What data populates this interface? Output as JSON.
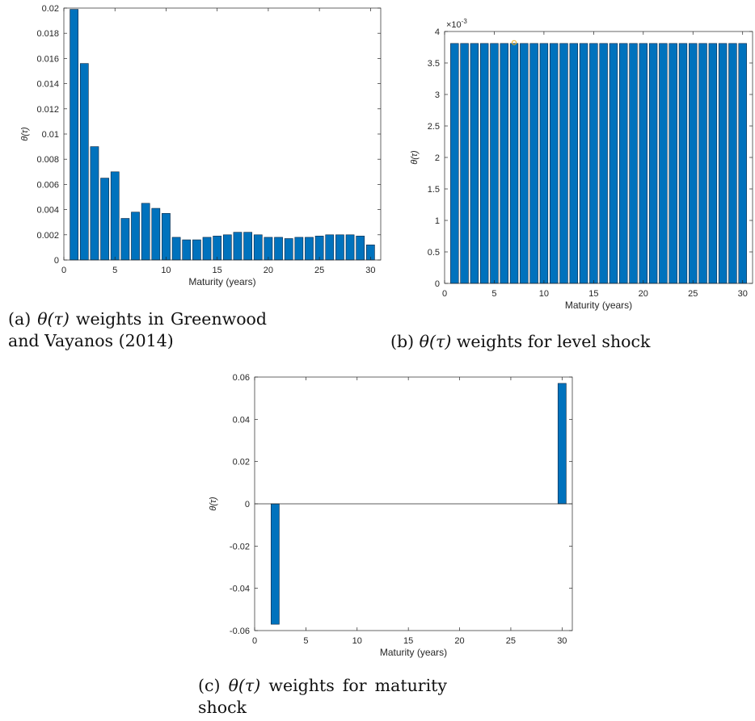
{
  "colors": {
    "bar": "#0072BD",
    "bar_edge": "#0b2540",
    "axis": "#262626",
    "zero_line": "#262626",
    "marker": "#EDB120"
  },
  "chart_data": [
    {
      "id": "a",
      "type": "bar",
      "xlabel": "Maturity (years)",
      "ylabel": "θ(τ)",
      "x": [
        1,
        2,
        3,
        4,
        5,
        6,
        7,
        8,
        9,
        10,
        11,
        12,
        13,
        14,
        15,
        16,
        17,
        18,
        19,
        20,
        21,
        22,
        23,
        24,
        25,
        26,
        27,
        28,
        29,
        30
      ],
      "values": [
        0.0199,
        0.0156,
        0.009,
        0.0065,
        0.007,
        0.0033,
        0.0038,
        0.0045,
        0.0041,
        0.0037,
        0.0018,
        0.0016,
        0.0016,
        0.0018,
        0.0019,
        0.002,
        0.0022,
        0.0022,
        0.002,
        0.0018,
        0.0018,
        0.0017,
        0.0018,
        0.0018,
        0.0019,
        0.002,
        0.002,
        0.002,
        0.0019,
        0.0012
      ],
      "xlim": [
        0,
        31
      ],
      "ylim": [
        0,
        0.02
      ],
      "xticks": [
        0,
        5,
        10,
        15,
        20,
        25,
        30
      ],
      "yticks": [
        0,
        0.002,
        0.004,
        0.006,
        0.008,
        0.01,
        0.012,
        0.014,
        0.016,
        0.018,
        0.02
      ],
      "yticklabels": [
        "0",
        "0.002",
        "0.004",
        "0.006",
        "0.008",
        "0.01",
        "0.012",
        "0.014",
        "0.016",
        "0.018",
        "0.02"
      ],
      "exponent_label": "",
      "grid": false
    },
    {
      "id": "b",
      "type": "bar",
      "xlabel": "Maturity (years)",
      "ylabel": "θ(τ)",
      "x": [
        1,
        2,
        3,
        4,
        5,
        6,
        7,
        8,
        9,
        10,
        11,
        12,
        13,
        14,
        15,
        16,
        17,
        18,
        19,
        20,
        21,
        22,
        23,
        24,
        25,
        26,
        27,
        28,
        29,
        30
      ],
      "values": [
        3.81,
        3.81,
        3.81,
        3.81,
        3.81,
        3.81,
        3.81,
        3.81,
        3.81,
        3.81,
        3.81,
        3.81,
        3.81,
        3.81,
        3.81,
        3.81,
        3.81,
        3.81,
        3.81,
        3.81,
        3.81,
        3.81,
        3.81,
        3.81,
        3.81,
        3.81,
        3.81,
        3.81,
        3.81,
        3.81
      ],
      "xlim": [
        0,
        31
      ],
      "ylim": [
        0,
        4
      ],
      "xticks": [
        0,
        5,
        10,
        15,
        20,
        25,
        30
      ],
      "yticks": [
        0,
        0.5,
        1,
        1.5,
        2,
        2.5,
        3,
        3.5,
        4
      ],
      "yticklabels": [
        "0",
        "0.5",
        "1",
        "1.5",
        "2",
        "2.5",
        "3",
        "3.5",
        "4"
      ],
      "exponent_label": "×10",
      "exponent_power": "-3",
      "marker_x": 7,
      "grid": false
    },
    {
      "id": "c",
      "type": "bar",
      "xlabel": "Maturity (years)",
      "ylabel": "θ(τ)",
      "x": [
        2,
        30
      ],
      "values": [
        -0.057,
        0.057
      ],
      "xlim": [
        0,
        31
      ],
      "ylim": [
        -0.06,
        0.06
      ],
      "xticks": [
        0,
        5,
        10,
        15,
        20,
        25,
        30
      ],
      "yticks": [
        -0.06,
        -0.04,
        -0.02,
        0,
        0.02,
        0.04,
        0.06
      ],
      "yticklabels": [
        "-0.06",
        "-0.04",
        "-0.02",
        "0",
        "0.02",
        "0.04",
        "0.06"
      ],
      "exponent_label": "",
      "zero_line": true,
      "grid": false
    }
  ],
  "captions": {
    "a": {
      "label": "(a)",
      "math": "θ(τ)",
      "line1_words": [
        "weights",
        "in",
        "Greenwood"
      ],
      "line2": "and Vayanos (2014)"
    },
    "b": {
      "label": "(b)",
      "math": "θ(τ)",
      "rest": "weights for level shock"
    },
    "c": {
      "label": "(c)",
      "math": "θ(τ)",
      "line1_words": [
        "weights",
        "for",
        "maturity"
      ],
      "line2": "shock"
    }
  }
}
